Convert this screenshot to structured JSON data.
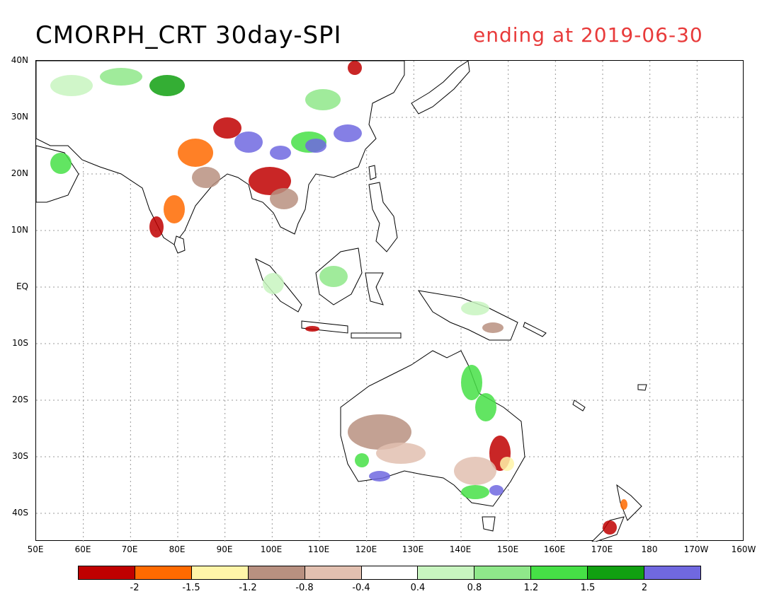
{
  "header": {
    "title": "CMORPH_CRT 30day-SPI",
    "subtitle": "ending at 2019-06-30",
    "title_color": "#000000",
    "subtitle_color": "#e83a3a"
  },
  "axes": {
    "y_labels": [
      "40N",
      "30N",
      "20N",
      "10N",
      "EQ",
      "10S",
      "20S",
      "30S",
      "40S"
    ],
    "x_labels": [
      "50E",
      "60E",
      "70E",
      "80E",
      "90E",
      "100E",
      "110E",
      "120E",
      "130E",
      "140E",
      "150E",
      "160E",
      "170E",
      "180",
      "170W",
      "160W"
    ]
  },
  "colorbar": {
    "colors": [
      "#c00000",
      "#ff6a00",
      "#fff5a8",
      "#b89080",
      "#e2c0b0",
      "#ffffff",
      "#c8f5c0",
      "#8fe88a",
      "#46e046",
      "#11a011",
      "#7068e0"
    ],
    "labels": [
      "-2",
      "-1.5",
      "-1.2",
      "-0.8",
      "-0.4",
      "0.4",
      "0.8",
      "1.2",
      "1.5",
      "2"
    ]
  },
  "map": {
    "land_outline": "#000000",
    "grid_color": "#999999"
  }
}
